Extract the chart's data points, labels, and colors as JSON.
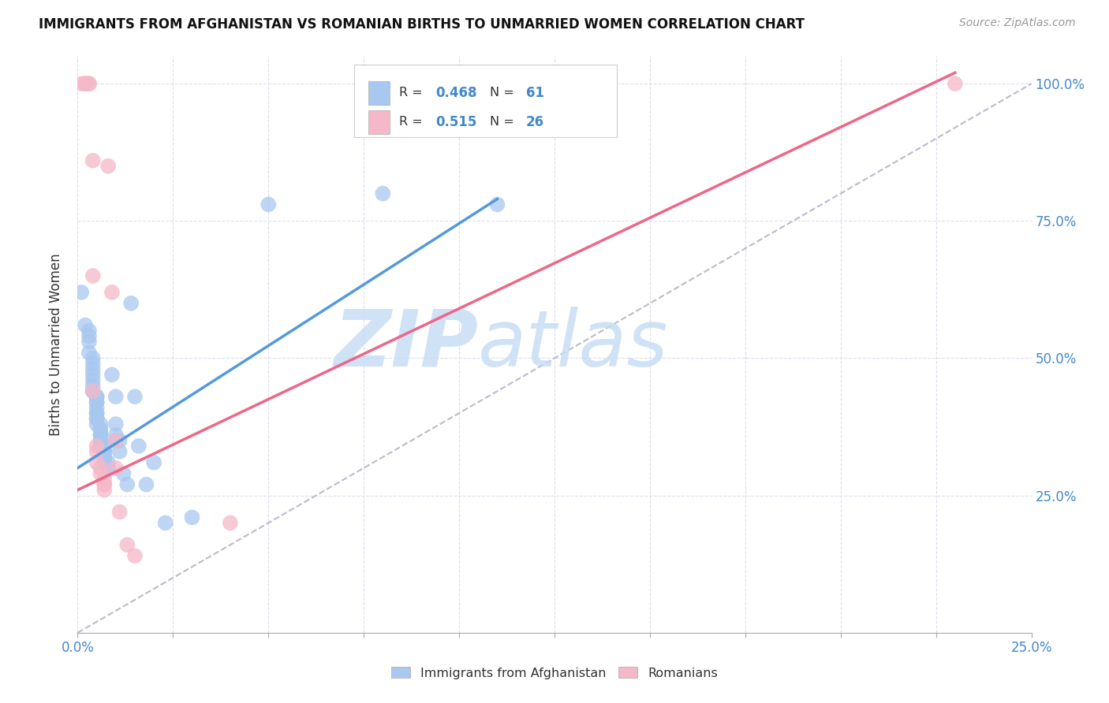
{
  "title": "IMMIGRANTS FROM AFGHANISTAN VS ROMANIAN BIRTHS TO UNMARRIED WOMEN CORRELATION CHART",
  "source": "Source: ZipAtlas.com",
  "ylabel": "Births to Unmarried Women",
  "legend_blue_r": "0.468",
  "legend_blue_n": "61",
  "legend_pink_r": "0.515",
  "legend_pink_n": "26",
  "legend_label_blue": "Immigrants from Afghanistan",
  "legend_label_pink": "Romanians",
  "watermark_zip": "ZIP",
  "watermark_atlas": "atlas",
  "blue_color": "#A8C8F0",
  "pink_color": "#F5B8C8",
  "blue_line_color": "#5599DD",
  "pink_line_color": "#EE6688",
  "diagonal_color": "#BBBBCC",
  "text_color_dark": "#333333",
  "text_color_blue": "#4488CC",
  "axis_color": "#AAAAAA",
  "grid_color": "#DDDDEE",
  "blue_scatter": [
    [
      0.001,
      0.62
    ],
    [
      0.002,
      0.56
    ],
    [
      0.003,
      0.55
    ],
    [
      0.003,
      0.54
    ],
    [
      0.003,
      0.53
    ],
    [
      0.003,
      0.51
    ],
    [
      0.004,
      0.5
    ],
    [
      0.004,
      0.49
    ],
    [
      0.004,
      0.48
    ],
    [
      0.004,
      0.47
    ],
    [
      0.004,
      0.46
    ],
    [
      0.004,
      0.45
    ],
    [
      0.004,
      0.44
    ],
    [
      0.004,
      0.44
    ],
    [
      0.005,
      0.43
    ],
    [
      0.005,
      0.43
    ],
    [
      0.005,
      0.42
    ],
    [
      0.005,
      0.42
    ],
    [
      0.005,
      0.41
    ],
    [
      0.005,
      0.4
    ],
    [
      0.005,
      0.4
    ],
    [
      0.005,
      0.39
    ],
    [
      0.005,
      0.39
    ],
    [
      0.005,
      0.38
    ],
    [
      0.006,
      0.38
    ],
    [
      0.006,
      0.37
    ],
    [
      0.006,
      0.37
    ],
    [
      0.006,
      0.36
    ],
    [
      0.006,
      0.36
    ],
    [
      0.006,
      0.35
    ],
    [
      0.006,
      0.35
    ],
    [
      0.006,
      0.34
    ],
    [
      0.007,
      0.34
    ],
    [
      0.007,
      0.33
    ],
    [
      0.007,
      0.33
    ],
    [
      0.007,
      0.33
    ],
    [
      0.007,
      0.32
    ],
    [
      0.007,
      0.32
    ],
    [
      0.007,
      0.31
    ],
    [
      0.008,
      0.31
    ],
    [
      0.008,
      0.3
    ],
    [
      0.008,
      0.3
    ],
    [
      0.009,
      0.47
    ],
    [
      0.01,
      0.43
    ],
    [
      0.01,
      0.38
    ],
    [
      0.01,
      0.36
    ],
    [
      0.01,
      0.35
    ],
    [
      0.011,
      0.35
    ],
    [
      0.011,
      0.33
    ],
    [
      0.012,
      0.29
    ],
    [
      0.013,
      0.27
    ],
    [
      0.014,
      0.6
    ],
    [
      0.015,
      0.43
    ],
    [
      0.016,
      0.34
    ],
    [
      0.018,
      0.27
    ],
    [
      0.02,
      0.31
    ],
    [
      0.023,
      0.2
    ],
    [
      0.03,
      0.21
    ],
    [
      0.05,
      0.78
    ],
    [
      0.08,
      0.8
    ],
    [
      0.11,
      0.78
    ]
  ],
  "pink_scatter": [
    [
      0.001,
      1.0
    ],
    [
      0.002,
      1.0
    ],
    [
      0.002,
      1.0
    ],
    [
      0.003,
      1.0
    ],
    [
      0.003,
      1.0
    ],
    [
      0.004,
      0.86
    ],
    [
      0.004,
      0.65
    ],
    [
      0.004,
      0.44
    ],
    [
      0.005,
      0.34
    ],
    [
      0.005,
      0.33
    ],
    [
      0.005,
      0.31
    ],
    [
      0.006,
      0.3
    ],
    [
      0.006,
      0.29
    ],
    [
      0.007,
      0.28
    ],
    [
      0.007,
      0.27
    ],
    [
      0.007,
      0.27
    ],
    [
      0.007,
      0.26
    ],
    [
      0.008,
      0.85
    ],
    [
      0.009,
      0.62
    ],
    [
      0.01,
      0.35
    ],
    [
      0.01,
      0.3
    ],
    [
      0.011,
      0.22
    ],
    [
      0.013,
      0.16
    ],
    [
      0.015,
      0.14
    ],
    [
      0.04,
      0.2
    ],
    [
      0.23,
      1.0
    ]
  ],
  "xlim": [
    0.0,
    0.25
  ],
  "ylim": [
    0.0,
    1.05
  ],
  "x_tick_positions": [
    0.0,
    0.025,
    0.05,
    0.075,
    0.1,
    0.125,
    0.15,
    0.175,
    0.2,
    0.225,
    0.25
  ],
  "y_ticks": [
    0.25,
    0.5,
    0.75,
    1.0
  ],
  "blue_line_x": [
    0.0,
    0.11
  ],
  "blue_line_y": [
    0.3,
    0.79
  ],
  "pink_line_x": [
    0.0,
    0.23
  ],
  "pink_line_y": [
    0.26,
    1.02
  ],
  "diag_line_x": [
    0.0,
    0.25
  ],
  "diag_line_y": [
    0.0,
    1.0
  ]
}
